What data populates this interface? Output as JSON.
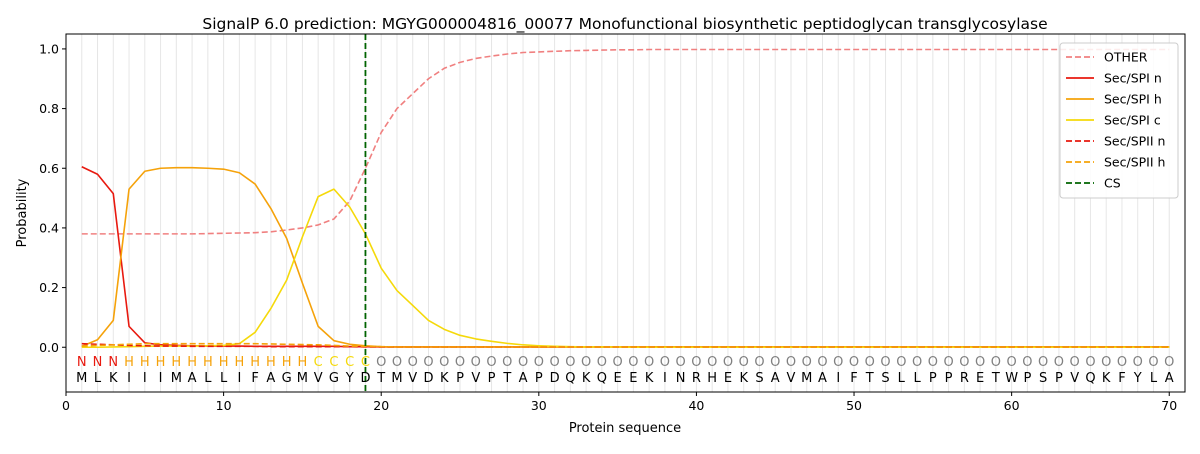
{
  "chart_data": {
    "type": "line",
    "title": "SignalP 6.0 prediction: MGYG000004816_00077 Monofunctional biosynthetic peptidoglycan transglycosylase",
    "xlabel": "Protein sequence",
    "ylabel": "Probability",
    "xlim": [
      0,
      71
    ],
    "ylim": [
      -0.15,
      1.05
    ],
    "x_ticks": [
      0,
      10,
      20,
      30,
      40,
      50,
      60,
      70
    ],
    "y_ticks": [
      0.0,
      0.2,
      0.4,
      0.6,
      0.8,
      1.0
    ],
    "grid": "vertical lines at each residue",
    "legend_position": "top-right",
    "sequence": "MLKIIIMALLIFAGMVGYDTMVDKPVPTAPDQKQEEKINRHEKSAVMAIFTSLLPPRETWPSPVQKFYLA",
    "labels": "NNNHHHHHHHHHHHHCCCCOOOOOOOOOOOOOOOOOOOOOOOOOOOOOOOOOOOOOOOOOOOOOOOOOOO",
    "label_colors": {
      "N": "#e8190f",
      "H": "#f5a20a",
      "C": "#f5d90a",
      "O": "#808080"
    },
    "cleavage_site": 19,
    "series": [
      {
        "name": "OTHER",
        "color": "#f08080",
        "dash": "dashed",
        "values": [
          0.38,
          0.38,
          0.38,
          0.38,
          0.38,
          0.38,
          0.38,
          0.38,
          0.381,
          0.382,
          0.383,
          0.384,
          0.387,
          0.393,
          0.4,
          0.41,
          0.43,
          0.49,
          0.6,
          0.72,
          0.8,
          0.85,
          0.9,
          0.935,
          0.955,
          0.968,
          0.976,
          0.983,
          0.988,
          0.99,
          0.992,
          0.994,
          0.995,
          0.996,
          0.997,
          0.997,
          0.998,
          0.998,
          0.998,
          0.998,
          0.998,
          0.998,
          0.998,
          0.998,
          0.998,
          0.998,
          0.998,
          0.998,
          0.998,
          0.998,
          0.998,
          0.998,
          0.998,
          0.998,
          0.998,
          0.998,
          0.998,
          0.998,
          0.998,
          0.998,
          0.998,
          0.998,
          0.998,
          0.998,
          0.998,
          0.998,
          0.998,
          0.998,
          0.998,
          0.998
        ]
      },
      {
        "name": "Sec/SPI n",
        "color": "#e8190f",
        "dash": "solid",
        "values": [
          0.605,
          0.58,
          0.515,
          0.07,
          0.015,
          0.008,
          0.006,
          0.005,
          0.004,
          0.004,
          0.004,
          0.003,
          0.003,
          0.003,
          0.003,
          0.003,
          0.003,
          0.002,
          0.002,
          0.001,
          0.001,
          0.001,
          0.001,
          0.001,
          0.001,
          0.001,
          0.001,
          0.001,
          0.001,
          0.001,
          0.001,
          0.001,
          0.001,
          0.001,
          0.001,
          0.001,
          0.001,
          0.001,
          0.001,
          0.001,
          0.001,
          0.001,
          0.001,
          0.001,
          0.001,
          0.001,
          0.001,
          0.001,
          0.001,
          0.001,
          0.001,
          0.001,
          0.001,
          0.001,
          0.001,
          0.001,
          0.001,
          0.001,
          0.001,
          0.001,
          0.001,
          0.001,
          0.001,
          0.001,
          0.001,
          0.001,
          0.001,
          0.001,
          0.001,
          0.001
        ]
      },
      {
        "name": "Sec/SPI h",
        "color": "#f5a20a",
        "dash": "solid",
        "values": [
          0.003,
          0.025,
          0.09,
          0.53,
          0.59,
          0.6,
          0.602,
          0.602,
          0.6,
          0.597,
          0.585,
          0.547,
          0.465,
          0.365,
          0.215,
          0.07,
          0.022,
          0.01,
          0.005,
          0.002,
          0.001,
          0.001,
          0.001,
          0.001,
          0.001,
          0.001,
          0.001,
          0.001,
          0.001,
          0.001,
          0.001,
          0.001,
          0.001,
          0.001,
          0.001,
          0.001,
          0.001,
          0.001,
          0.001,
          0.001,
          0.001,
          0.001,
          0.001,
          0.001,
          0.001,
          0.001,
          0.001,
          0.001,
          0.001,
          0.001,
          0.001,
          0.001,
          0.001,
          0.001,
          0.001,
          0.001,
          0.001,
          0.001,
          0.001,
          0.001,
          0.001,
          0.001,
          0.001,
          0.001,
          0.001,
          0.001,
          0.001,
          0.001,
          0.001,
          0.001
        ]
      },
      {
        "name": "Sec/SPI c",
        "color": "#f5d90a",
        "dash": "solid",
        "values": [
          0.0,
          0.0,
          0.001,
          0.002,
          0.003,
          0.004,
          0.004,
          0.004,
          0.005,
          0.006,
          0.012,
          0.05,
          0.13,
          0.225,
          0.37,
          0.505,
          0.53,
          0.47,
          0.38,
          0.265,
          0.19,
          0.14,
          0.09,
          0.06,
          0.04,
          0.028,
          0.02,
          0.013,
          0.008,
          0.005,
          0.003,
          0.002,
          0.001,
          0.001,
          0.001,
          0.0,
          0.0,
          0.0,
          0.0,
          0.0,
          0.0,
          0.0,
          0.0,
          0.0,
          0.0,
          0.0,
          0.0,
          0.0,
          0.0,
          0.0,
          0.0,
          0.0,
          0.0,
          0.0,
          0.0,
          0.0,
          0.0,
          0.0,
          0.0,
          0.0,
          0.0,
          0.0,
          0.0,
          0.0,
          0.0,
          0.0,
          0.0,
          0.0,
          0.0,
          0.0
        ]
      },
      {
        "name": "Sec/SPII n",
        "color": "#e8190f",
        "dash": "dashed",
        "values": [
          0.012,
          0.01,
          0.008,
          0.006,
          0.005,
          0.004,
          0.004,
          0.003,
          0.003,
          0.003,
          0.003,
          0.003,
          0.002,
          0.002,
          0.002,
          0.002,
          0.002,
          0.002,
          0.001,
          0.001,
          0.001,
          0.001,
          0.001,
          0.001,
          0.001,
          0.001,
          0.001,
          0.001,
          0.001,
          0.001,
          0.001,
          0.001,
          0.001,
          0.001,
          0.001,
          0.001,
          0.001,
          0.001,
          0.001,
          0.001,
          0.001,
          0.001,
          0.001,
          0.001,
          0.001,
          0.001,
          0.001,
          0.001,
          0.001,
          0.001,
          0.001,
          0.001,
          0.001,
          0.001,
          0.001,
          0.001,
          0.001,
          0.001,
          0.001,
          0.001,
          0.001,
          0.001,
          0.001,
          0.001,
          0.001,
          0.001,
          0.001,
          0.001,
          0.001,
          0.001
        ]
      },
      {
        "name": "Sec/SPII h",
        "color": "#f5a20a",
        "dash": "dashed",
        "values": [
          0.004,
          0.006,
          0.008,
          0.01,
          0.012,
          0.012,
          0.012,
          0.012,
          0.012,
          0.012,
          0.012,
          0.012,
          0.011,
          0.01,
          0.009,
          0.008,
          0.006,
          0.004,
          0.003,
          0.002,
          0.001,
          0.001,
          0.001,
          0.001,
          0.001,
          0.001,
          0.001,
          0.001,
          0.001,
          0.001,
          0.001,
          0.001,
          0.001,
          0.001,
          0.001,
          0.001,
          0.001,
          0.001,
          0.001,
          0.001,
          0.001,
          0.001,
          0.001,
          0.001,
          0.001,
          0.001,
          0.001,
          0.001,
          0.001,
          0.001,
          0.001,
          0.001,
          0.001,
          0.001,
          0.001,
          0.001,
          0.001,
          0.001,
          0.001,
          0.001,
          0.001,
          0.001,
          0.001,
          0.001,
          0.001,
          0.001,
          0.001,
          0.001,
          0.001,
          0.001
        ]
      }
    ],
    "cs_legend": {
      "name": "CS",
      "color": "#006400",
      "dash": "dashed"
    }
  }
}
